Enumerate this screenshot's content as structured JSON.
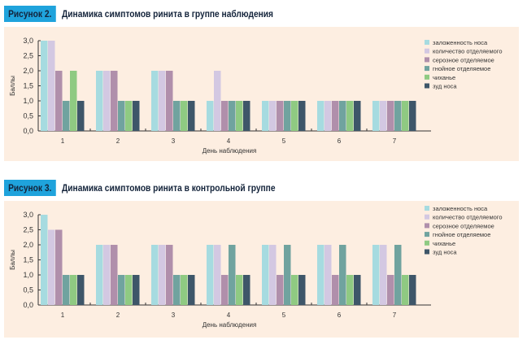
{
  "series_colors": [
    "#a6dbe0",
    "#d3c8e2",
    "#b08fab",
    "#70a39f",
    "#8fca82",
    "#3e5669"
  ],
  "chart_data": [
    {
      "type": "bar",
      "figure_label": "Рисунок 2.",
      "title": "Динамика симптомов ринита в группе наблюдения",
      "xlabel": "День наблюдения",
      "ylabel": "Баллы",
      "ylim": [
        0,
        3
      ],
      "yticks": [
        "0,0",
        "0,5",
        "1,0",
        "1,5",
        "2,0",
        "2,5",
        "3,0"
      ],
      "categories": [
        "1",
        "2",
        "3",
        "4",
        "5",
        "6",
        "7"
      ],
      "legend_position": "right",
      "series": [
        {
          "name": "заложенность носа",
          "values": [
            3,
            2,
            2,
            1,
            1,
            1,
            1
          ]
        },
        {
          "name": "количество отделяемого",
          "values": [
            3,
            2,
            2,
            2,
            1,
            1,
            1
          ]
        },
        {
          "name": "серозное отделяемое",
          "values": [
            2,
            2,
            2,
            1,
            1,
            1,
            1
          ]
        },
        {
          "name": "гнойное отделяемое",
          "values": [
            1,
            1,
            1,
            1,
            1,
            1,
            1
          ]
        },
        {
          "name": "чиханье",
          "values": [
            2,
            1,
            1,
            1,
            1,
            1,
            1
          ]
        },
        {
          "name": "зуд носа",
          "values": [
            1,
            1,
            1,
            1,
            1,
            1,
            1
          ]
        }
      ]
    },
    {
      "type": "bar",
      "figure_label": "Рисунок 3.",
      "title": "Динамика симптомов ринита в контрольной группе",
      "xlabel": "День наблюдения",
      "ylabel": "Баллы",
      "ylim": [
        0,
        3
      ],
      "yticks": [
        "0,0",
        "0,5",
        "1,0",
        "1,5",
        "2,0",
        "2,5",
        "3,0"
      ],
      "categories": [
        "1",
        "2",
        "3",
        "4",
        "5",
        "6",
        "7"
      ],
      "legend_position": "right",
      "series": [
        {
          "name": "заложенность носа",
          "values": [
            3,
            2,
            2,
            2,
            2,
            2,
            2
          ]
        },
        {
          "name": "количество отделяемого",
          "values": [
            2.5,
            2,
            2,
            2,
            2,
            2,
            2
          ]
        },
        {
          "name": "серозное отделяемое",
          "values": [
            2.5,
            2,
            2,
            1,
            1,
            1,
            1
          ]
        },
        {
          "name": "гнойное отделяемое",
          "values": [
            1,
            1,
            1,
            2,
            2,
            2,
            2
          ]
        },
        {
          "name": "чиханье",
          "values": [
            1,
            1,
            1,
            1,
            1,
            1,
            1
          ]
        },
        {
          "name": "зуд носа",
          "values": [
            1,
            1,
            1,
            1,
            1,
            1,
            1
          ]
        }
      ]
    }
  ]
}
